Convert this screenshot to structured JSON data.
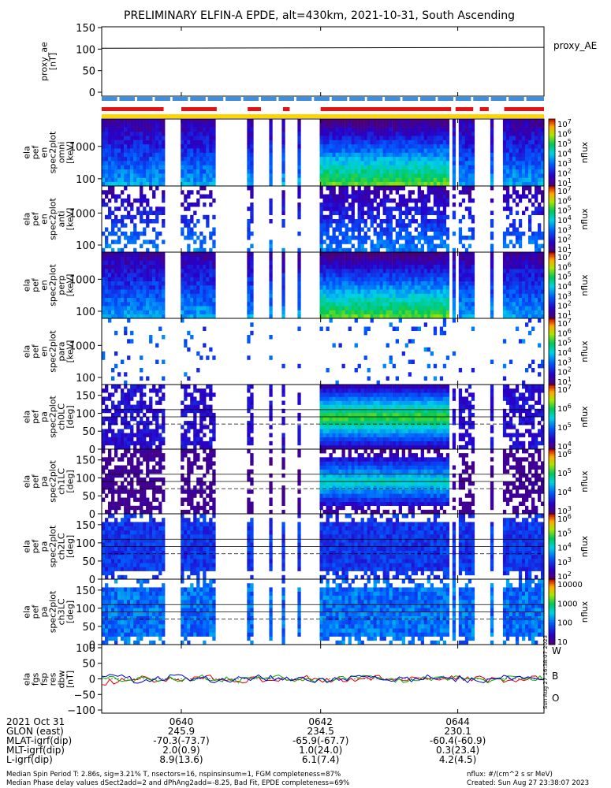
{
  "title": "PRELIMINARY ELFIN-A EPDE, alt=430km, 2021-10-31, South Ascending",
  "side_stamp": "Sun Aug 27 16:38:07 2023",
  "colors": {
    "bar_blue": "#3b8fe0",
    "bar_red": "#e51010",
    "bar_yellow": "#ffd400",
    "fgs_w": "#e00000",
    "fgs_b": "#00b000",
    "fgs_o": "#0000d0"
  },
  "chart_data": [
    {
      "id": "proxy_ae",
      "type": "line",
      "ylabel_lines": [
        "proxy_ae",
        "[nT]"
      ],
      "legend": "proxy_AE",
      "yticks": [
        "150",
        "100",
        "50",
        "0"
      ],
      "ylim": [
        0,
        150
      ],
      "x": [
        0,
        1
      ],
      "values": [
        102,
        104
      ]
    },
    {
      "id": "orbit_bars",
      "type": "bar",
      "blue_segments": [
        [
          0.0,
          0.035
        ],
        [
          0.04,
          0.075
        ],
        [
          0.08,
          0.115
        ],
        [
          0.12,
          0.155
        ],
        [
          0.16,
          0.195
        ],
        [
          0.2,
          0.235
        ],
        [
          0.24,
          0.275
        ],
        [
          0.28,
          0.315
        ],
        [
          0.32,
          0.355
        ],
        [
          0.36,
          0.395
        ],
        [
          0.4,
          0.435
        ],
        [
          0.44,
          0.475
        ],
        [
          0.48,
          0.515
        ],
        [
          0.52,
          0.555
        ],
        [
          0.56,
          0.595
        ],
        [
          0.6,
          0.635
        ],
        [
          0.64,
          0.675
        ],
        [
          0.68,
          0.715
        ],
        [
          0.72,
          0.755
        ],
        [
          0.76,
          0.795
        ],
        [
          0.8,
          0.835
        ],
        [
          0.84,
          0.875
        ],
        [
          0.88,
          0.915
        ],
        [
          0.92,
          0.955
        ],
        [
          0.96,
          1.0
        ]
      ],
      "red_segments": [
        [
          0.0,
          0.14
        ],
        [
          0.18,
          0.26
        ],
        [
          0.33,
          0.36
        ],
        [
          0.41,
          0.425
        ],
        [
          0.495,
          0.79
        ],
        [
          0.8,
          0.84
        ],
        [
          0.855,
          0.875
        ],
        [
          0.91,
          1.0
        ]
      ],
      "yellow_segments": [
        [
          0.0,
          1.0
        ]
      ]
    },
    {
      "id": "p1",
      "type": "heatmap",
      "ylabel_lines": [
        "ela",
        "pef",
        "en",
        "spec2plot",
        "omni",
        "[keV]"
      ],
      "scale": "log",
      "ytick_labels": [
        "1000",
        "100"
      ],
      "ytick_values": [
        1000,
        100
      ],
      "ylim": [
        60,
        7000
      ],
      "cbar_ticks": [
        "10^7",
        "10^6",
        "10^5",
        "10^4",
        "10^3",
        "10^2",
        "10^1"
      ],
      "cbar_label": "nflux"
    },
    {
      "id": "p2",
      "type": "heatmap",
      "ylabel_lines": [
        "ela",
        "pef",
        "en",
        "spec2plot",
        "anti",
        "[keV]"
      ],
      "scale": "log",
      "ytick_labels": [
        "1000",
        "100"
      ],
      "ytick_values": [
        1000,
        100
      ],
      "ylim": [
        60,
        7000
      ],
      "cbar_ticks": [
        "10^7",
        "10^6",
        "10^5",
        "10^4",
        "10^3",
        "10^2",
        "10^1"
      ],
      "cbar_label": "nflux"
    },
    {
      "id": "p3",
      "type": "heatmap",
      "ylabel_lines": [
        "ela",
        "pef",
        "en",
        "spec2plot",
        "perp",
        "[keV]"
      ],
      "scale": "log",
      "ytick_labels": [
        "1000",
        "100"
      ],
      "ytick_values": [
        1000,
        100
      ],
      "ylim": [
        60,
        7000
      ],
      "cbar_ticks": [
        "10^7",
        "10^6",
        "10^5",
        "10^4",
        "10^3",
        "10^2",
        "10^1"
      ],
      "cbar_label": "nflux"
    },
    {
      "id": "p4",
      "type": "heatmap",
      "ylabel_lines": [
        "ela",
        "pef",
        "en",
        "spec2plot",
        "para",
        "[keV]"
      ],
      "scale": "log",
      "ytick_labels": [
        "1000",
        "100"
      ],
      "ytick_values": [
        1000,
        100
      ],
      "ylim": [
        60,
        7000
      ],
      "cbar_ticks": [
        "10^7",
        "10^6",
        "10^5",
        "10^4",
        "10^3",
        "10^2",
        "10^1"
      ],
      "cbar_label": "nflux"
    },
    {
      "id": "p5",
      "type": "heatmap",
      "ylabel_lines": [
        "ela",
        "pef",
        "pa",
        "spec2plot",
        "ch0LC",
        "[deg]"
      ],
      "scale": "linear",
      "ytick_labels": [
        "150",
        "100",
        "50",
        "0"
      ],
      "ytick_values": [
        150,
        100,
        50,
        0
      ],
      "ylim": [
        0,
        180
      ],
      "cbar_ticks": [
        "10^7",
        "10^6",
        "10^5",
        "10^4"
      ],
      "cbar_label": "nflux"
    },
    {
      "id": "p6",
      "type": "heatmap",
      "ylabel_lines": [
        "ela",
        "pef",
        "pa",
        "spec2plot",
        "ch1LC",
        "[deg]"
      ],
      "scale": "linear",
      "ytick_labels": [
        "150",
        "100",
        "50",
        "0"
      ],
      "ytick_values": [
        150,
        100,
        50,
        0
      ],
      "ylim": [
        0,
        180
      ],
      "cbar_ticks": [
        "10^6",
        "10^5",
        "10^4",
        "10^3"
      ],
      "cbar_label": "nflux"
    },
    {
      "id": "p7",
      "type": "heatmap",
      "ylabel_lines": [
        "ela",
        "pef",
        "pa",
        "spec2plot",
        "ch2LC",
        "[deg]"
      ],
      "scale": "linear",
      "ytick_labels": [
        "150",
        "100",
        "50",
        "0"
      ],
      "ytick_values": [
        150,
        100,
        50,
        0
      ],
      "ylim": [
        0,
        180
      ],
      "cbar_ticks": [
        "10^6",
        "10^5",
        "10^4",
        "10^3",
        "10^2"
      ],
      "cbar_label": "nflux"
    },
    {
      "id": "p8",
      "type": "heatmap",
      "ylabel_lines": [
        "ela",
        "pef",
        "pa",
        "spec2plot",
        "ch3LC",
        "[deg]"
      ],
      "scale": "linear",
      "ytick_labels": [
        "150",
        "100",
        "50",
        "0"
      ],
      "ytick_values": [
        150,
        100,
        50,
        0
      ],
      "ylim": [
        0,
        180
      ],
      "cbar_ticks": [
        "10000",
        "1000",
        "100",
        "10"
      ],
      "cbar_label": "nflux"
    },
    {
      "id": "fgs",
      "type": "line",
      "ylabel_lines": [
        "ela",
        "fgs",
        "fsp",
        "res",
        "dbw",
        "[nT]"
      ],
      "yticks": [
        "100",
        "50",
        "0",
        "−50",
        "−100"
      ],
      "ylim": [
        -110,
        110
      ],
      "legend": [
        "W",
        "B",
        "O"
      ]
    }
  ],
  "footer": {
    "rows": [
      {
        "label": "2021 Oct 31",
        "v1": "0640",
        "v2": "0642",
        "v3": "0644"
      },
      {
        "label": "GLON (east)",
        "v1": "245.9",
        "v2": "234.5",
        "v3": "230.1"
      },
      {
        "label": "MLAT-igrf(dip)",
        "v1": "-70.3(-73.7)",
        "v2": "-65.9(-67.7)",
        "v3": "-60.4(-60.9)"
      },
      {
        "label": "MLT-igrf(dip)",
        "v1": "2.0(0.9)",
        "v2": "1.0(24.0)",
        "v3": "0.3(23.4)"
      },
      {
        "label": "L-igrf(dip)",
        "v1": "8.9(13.6)",
        "v2": "6.1(7.4)",
        "v3": "4.2(4.5)"
      }
    ],
    "note1": "Median Spin Period T: 2.86s, sig=3.21% T, nsectors=16, nspinsinsum=1, FGM completeness=87%",
    "note2": "Median Phase delay values dSect2add=2 and dPhAng2add=-8.25, Bad Fit, EPDE completeness=69%",
    "units": "nflux: #/(cm^2 s sr MeV)",
    "created": "Created: Sun Aug 27 23:38:07 2023"
  }
}
